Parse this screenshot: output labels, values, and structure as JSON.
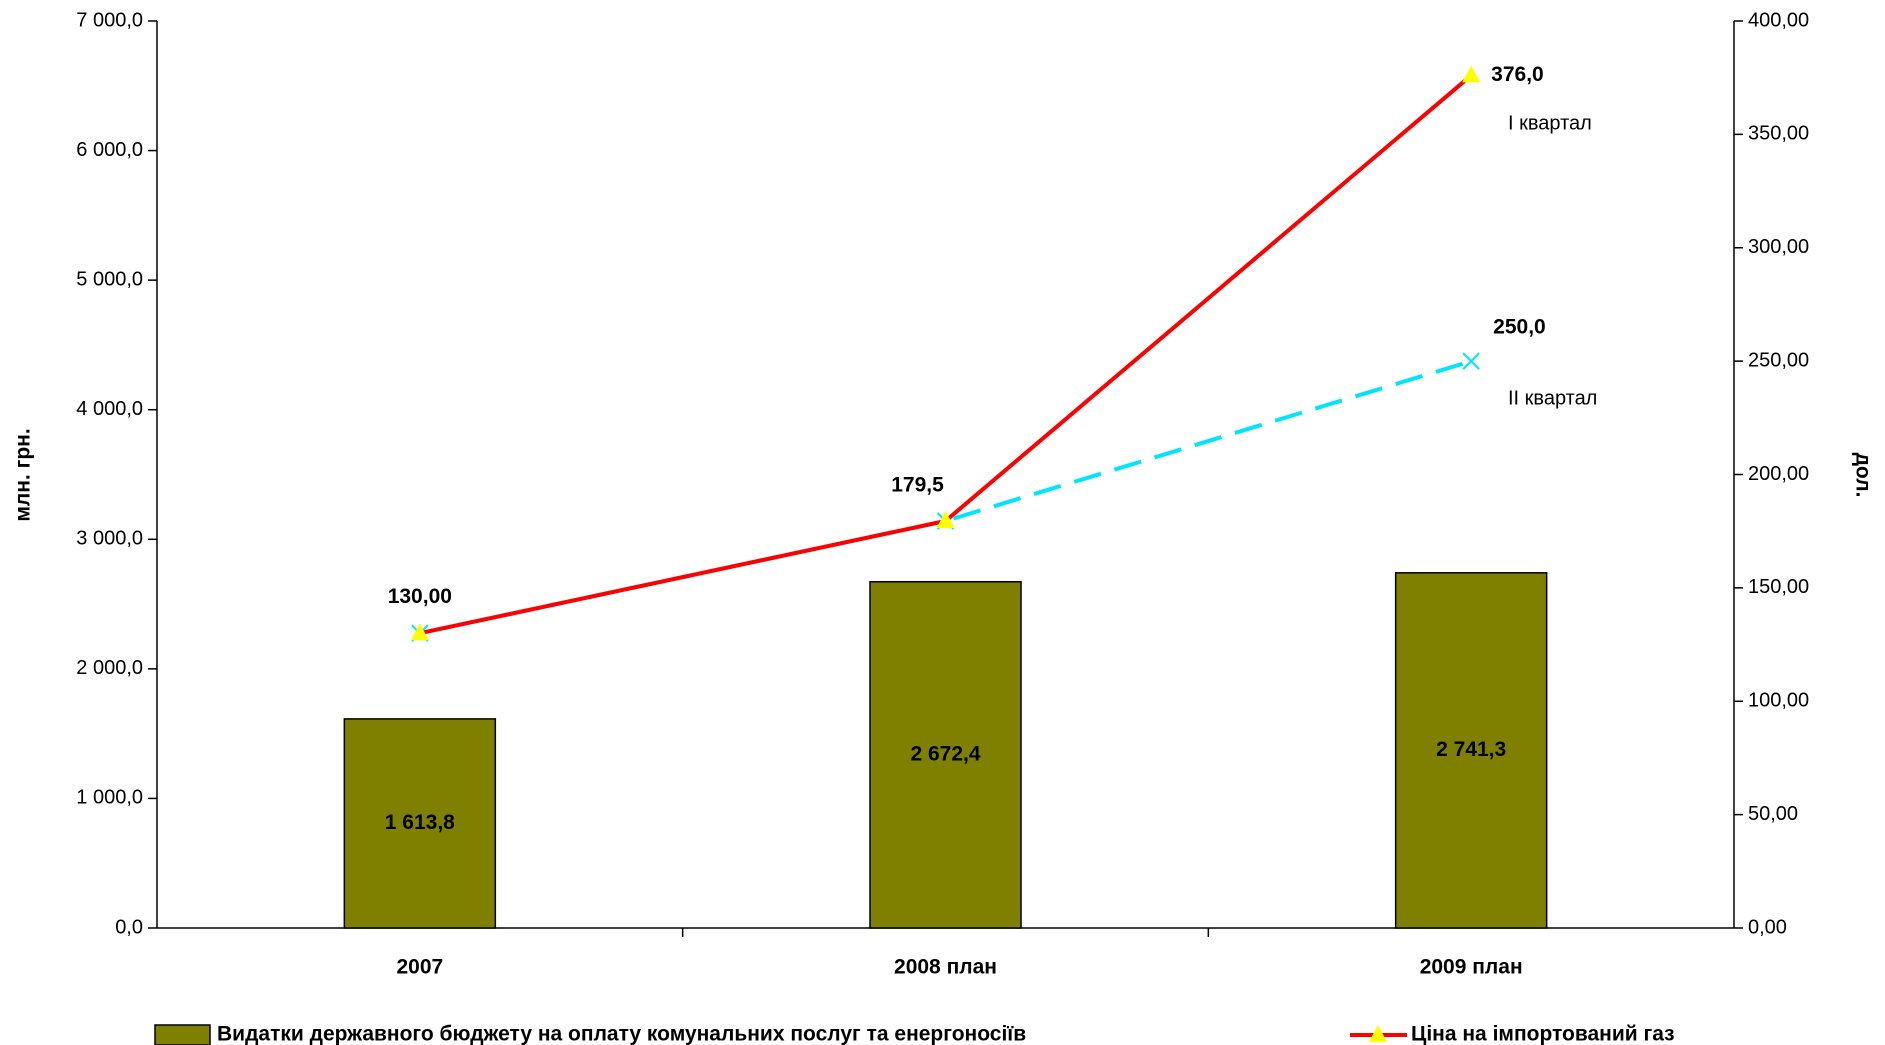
{
  "chart_data": {
    "type": "bar",
    "categories": [
      "2007",
      "2008 план",
      "2009 план"
    ],
    "y_label": "млн. грн.",
    "y2_label": "дол.",
    "ylim": [
      0,
      7000
    ],
    "yticks": [
      {
        "value": 0,
        "label": "0,0"
      },
      {
        "value": 1000,
        "label": "1 000,0"
      },
      {
        "value": 2000,
        "label": "2 000,0"
      },
      {
        "value": 3000,
        "label": "3 000,0"
      },
      {
        "value": 4000,
        "label": "4 000,0"
      },
      {
        "value": 5000,
        "label": "5 000,0"
      },
      {
        "value": 6000,
        "label": "6 000,0"
      },
      {
        "value": 7000,
        "label": "7 000,0"
      }
    ],
    "y2lim": [
      0,
      400
    ],
    "y2ticks": [
      {
        "value": 0,
        "label": "0,00"
      },
      {
        "value": 50,
        "label": "50,00"
      },
      {
        "value": 100,
        "label": "100,00"
      },
      {
        "value": 150,
        "label": "150,00"
      },
      {
        "value": 200,
        "label": "200,00"
      },
      {
        "value": 250,
        "label": "250,00"
      },
      {
        "value": 300,
        "label": "300,00"
      },
      {
        "value": 350,
        "label": "350,00"
      },
      {
        "value": 400,
        "label": "400,00"
      }
    ],
    "series": [
      {
        "name": "Видатки державного бюджету на оплату комунальних послуг та енергоносіїв",
        "type": "bar",
        "color": "#808000",
        "values": [
          1613.8,
          2672.4,
          2741.3
        ],
        "value_labels": [
          "1 613,8",
          "2 672,4",
          "2 741,3"
        ]
      },
      {
        "type": "line",
        "axis": "y2",
        "color": "#00e5ff",
        "dashed": true,
        "marker": "x",
        "values": [
          130,
          179.5,
          250
        ],
        "value_labels": [
          null,
          null,
          "250,0"
        ]
      },
      {
        "name": "Ціна на імпортований газ",
        "type": "line",
        "axis": "y2",
        "color": "#ff0000",
        "marker": "triangle",
        "marker_color": "#ffff00",
        "values": [
          130,
          179.5,
          376
        ],
        "value_labels": [
          "130,00",
          "179,5",
          "376,0"
        ]
      }
    ],
    "annotations": [
      "I квартал",
      "II квартал"
    ]
  }
}
